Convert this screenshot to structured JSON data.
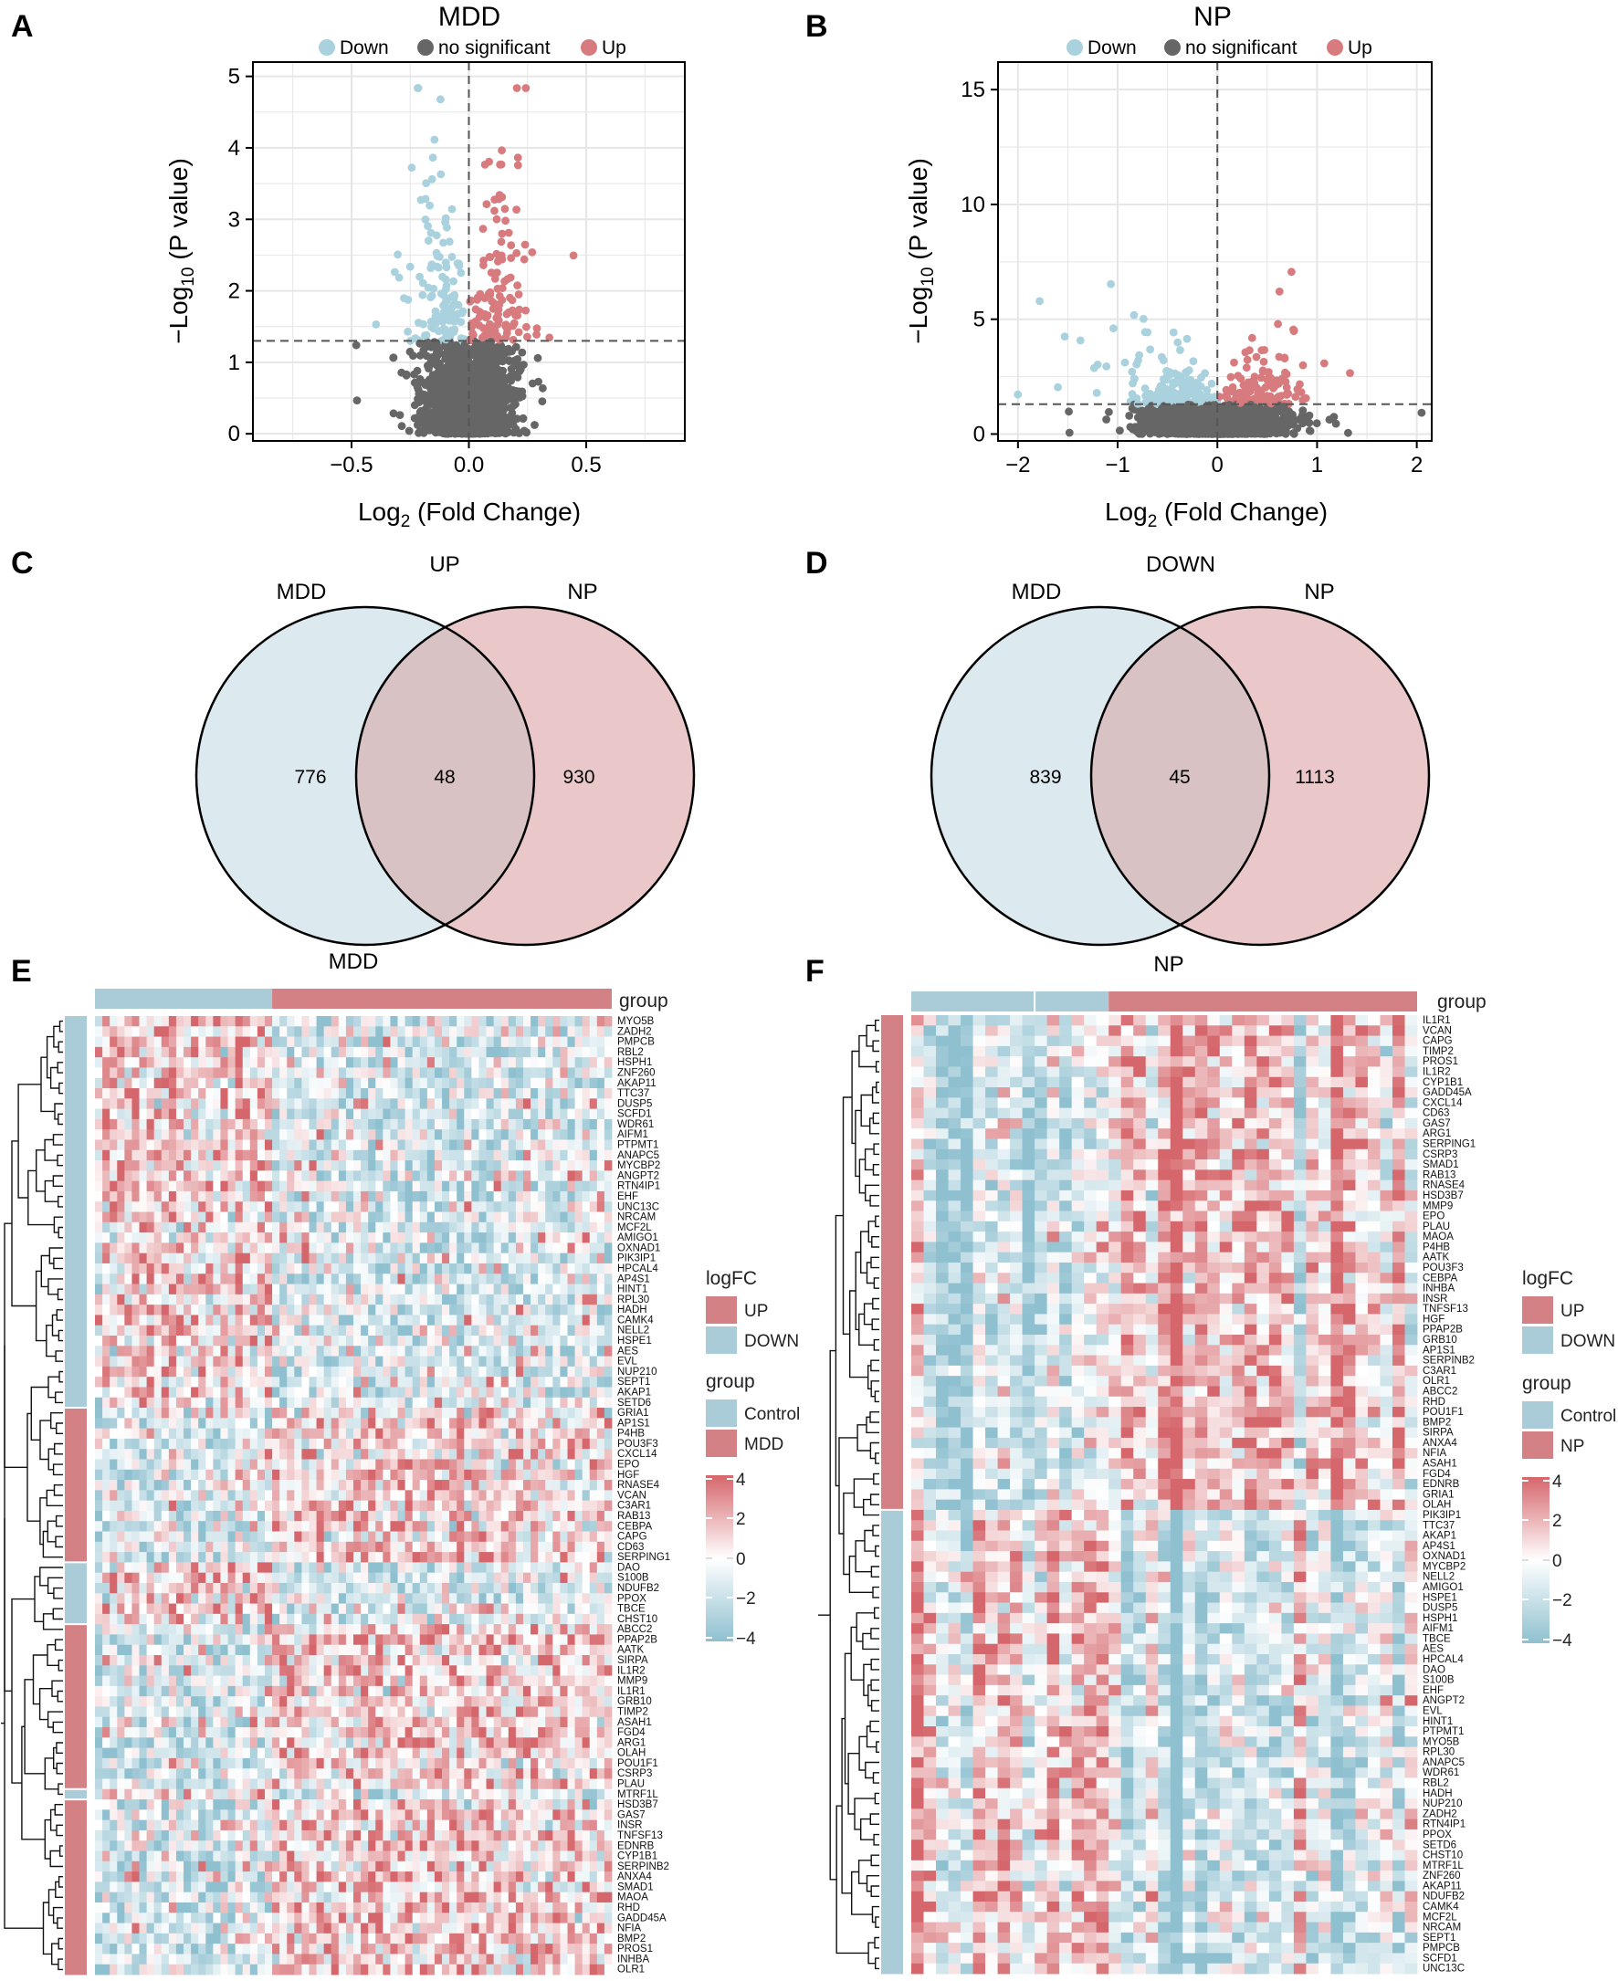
{
  "colors": {
    "up": "#D77B7E",
    "down": "#A9D1DE",
    "ns": "#666666",
    "control": "#A9CCD8",
    "case": "#D48185",
    "venn_left": "#DCEAF0",
    "venn_right": "#EAC8CA",
    "venn_mid": "#D8C2C4"
  },
  "panels": {
    "A": "A",
    "B": "B",
    "C": "C",
    "D": "D",
    "E": "E",
    "F": "F"
  },
  "volcano_legend": {
    "down": "Down",
    "ns": "no significant",
    "up": "Up"
  },
  "chart_data": [
    {
      "id": "A",
      "type": "scatter",
      "title": "MDD",
      "xlabel": "Log2 (Fold Change)",
      "ylabel": "-Log10 (P value)",
      "xlim": [
        -0.92,
        0.92
      ],
      "ylim": [
        -0.1,
        5.2
      ],
      "xticks": [
        -0.5,
        0.0,
        0.5
      ],
      "xticklabels": [
        "−0.5",
        "0.0",
        "0.5"
      ],
      "yticks": [
        0,
        1,
        2,
        3,
        4,
        5
      ],
      "p_threshold_line": 1.3,
      "fc_threshold_line": 0,
      "series": [
        "Down",
        "no significant",
        "Up"
      ]
    },
    {
      "id": "B",
      "type": "scatter",
      "title": "NP",
      "xlabel": "Log2 (Fold Change)",
      "ylabel": "-Log10 (P value)",
      "xlim": [
        -2.2,
        2.15
      ],
      "ylim": [
        -0.3,
        16.2
      ],
      "xticks": [
        -2,
        -1,
        0,
        1,
        2
      ],
      "xticklabels": [
        "−2",
        "−1",
        "0",
        "1",
        "2"
      ],
      "yticks": [
        0,
        5,
        10,
        15
      ],
      "p_threshold_line": 1.3,
      "fc_threshold_line": 0,
      "series": [
        "Down",
        "no significant",
        "Up"
      ]
    },
    {
      "id": "C",
      "type": "venn",
      "title": "UP",
      "sets": [
        "MDD",
        "NP"
      ],
      "bottom_label": "MDD",
      "left_only": "776",
      "intersection": "48",
      "right_only": "930"
    },
    {
      "id": "D",
      "type": "venn",
      "title": "DOWN",
      "sets": [
        "MDD",
        "NP"
      ],
      "bottom_label": "NP",
      "left_only": "839",
      "intersection": "45",
      "right_only": "1113"
    },
    {
      "id": "E",
      "type": "heatmap",
      "group_label": "group",
      "n_control_cols": 24,
      "n_case_cols": 46,
      "genes": [
        "MYO5B",
        "ZADH2",
        "PMPCB",
        "RBL2",
        "HSPH1",
        "ZNF260",
        "AKAP11",
        "TTC37",
        "DUSP5",
        "SCFD1",
        "WDR61",
        "AIFM1",
        "PTPMT1",
        "ANAPC5",
        "MYCBP2",
        "ANGPT2",
        "RTN4IP1",
        "EHF",
        "UNC13C",
        "NRCAM",
        "MCF2L",
        "AMIGO1",
        "OXNAD1",
        "PIK3IP1",
        "HPCAL4",
        "AP4S1",
        "HINT1",
        "RPL30",
        "HADH",
        "CAMK4",
        "NELL2",
        "HSPE1",
        "AES",
        "EVL",
        "NUP210",
        "SEPT1",
        "AKAP1",
        "SETD6",
        "GRIA1",
        "AP1S1",
        "P4HB",
        "POU3F3",
        "CXCL14",
        "EPO",
        "HGF",
        "RNASE4",
        "VCAN",
        "C3AR1",
        "RAB13",
        "CEBPA",
        "CAPG",
        "CD63",
        "SERPING1",
        "DAO",
        "S100B",
        "NDUFB2",
        "PPOX",
        "TBCE",
        "CHST10",
        "ABCC2",
        "PPAP2B",
        "AATK",
        "SIRPA",
        "IL1R2",
        "MMP9",
        "IL1R1",
        "GRB10",
        "TIMP2",
        "ASAH1",
        "FGD4",
        "ARG1",
        "OLAH",
        "POU1F1",
        "CSRP3",
        "PLAU",
        "MTRF1L",
        "HSD3B7",
        "GAS7",
        "INSR",
        "TNFSF13",
        "EDNRB",
        "CYP1B1",
        "SERPINB2",
        "ANXA4",
        "SMAD1",
        "MAOA",
        "RHD",
        "GADD45A",
        "NFIA",
        "BMP2",
        "PROS1",
        "INHBA",
        "OLR1"
      ],
      "row_logfc": [
        "DOWN",
        "DOWN",
        "DOWN",
        "DOWN",
        "DOWN",
        "DOWN",
        "DOWN",
        "DOWN",
        "DOWN",
        "DOWN",
        "DOWN",
        "DOWN",
        "DOWN",
        "DOWN",
        "DOWN",
        "DOWN",
        "DOWN",
        "DOWN",
        "DOWN",
        "DOWN",
        "DOWN",
        "DOWN",
        "DOWN",
        "DOWN",
        "DOWN",
        "DOWN",
        "DOWN",
        "DOWN",
        "DOWN",
        "DOWN",
        "DOWN",
        "DOWN",
        "DOWN",
        "DOWN",
        "DOWN",
        "DOWN",
        "DOWN",
        "DOWN",
        "UP",
        "UP",
        "UP",
        "UP",
        "UP",
        "UP",
        "UP",
        "UP",
        "UP",
        "UP",
        "UP",
        "UP",
        "UP",
        "UP",
        "UP",
        "DOWN",
        "DOWN",
        "DOWN",
        "DOWN",
        "DOWN",
        "DOWN",
        "UP",
        "UP",
        "UP",
        "UP",
        "UP",
        "UP",
        "UP",
        "UP",
        "UP",
        "UP",
        "UP",
        "UP",
        "UP",
        "UP",
        "UP",
        "UP",
        "DOWN",
        "UP",
        "UP",
        "UP",
        "UP",
        "UP",
        "UP",
        "UP",
        "UP",
        "UP",
        "UP",
        "UP",
        "UP",
        "UP",
        "UP",
        "UP",
        "UP",
        "UP"
      ],
      "legend": {
        "logfc_title": "logFC",
        "logfc_up": "UP",
        "logfc_down": "DOWN",
        "group_title": "group",
        "group_control": "Control",
        "group_case": "MDD",
        "scale_ticks": [
          "4",
          "2",
          "0",
          "−2",
          "−4"
        ]
      }
    },
    {
      "id": "F",
      "type": "heatmap",
      "group_label": "group",
      "n_control_cols": 16,
      "n_case_cols": 25,
      "genes": [
        "IL1R1",
        "VCAN",
        "CAPG",
        "TIMP2",
        "PROS1",
        "IL1R2",
        "CYP1B1",
        "GADD45A",
        "CXCL14",
        "CD63",
        "GAS7",
        "ARG1",
        "SERPING1",
        "CSRP3",
        "SMAD1",
        "RAB13",
        "RNASE4",
        "HSD3B7",
        "MMP9",
        "EPO",
        "PLAU",
        "MAOA",
        "P4HB",
        "AATK",
        "POU3F3",
        "CEBPA",
        "INHBA",
        "INSR",
        "TNFSF13",
        "HGF",
        "PPAP2B",
        "GRB10",
        "AP1S1",
        "SERPINB2",
        "C3AR1",
        "OLR1",
        "ABCC2",
        "RHD",
        "POU1F1",
        "BMP2",
        "SIRPA",
        "ANXA4",
        "NFIA",
        "ASAH1",
        "FGD4",
        "EDNRB",
        "GRIA1",
        "OLAH",
        "PIK3IP1",
        "TTC37",
        "AKAP1",
        "AP4S1",
        "OXNAD1",
        "MYCBP2",
        "NELL2",
        "AMIGO1",
        "HSPE1",
        "DUSP5",
        "HSPH1",
        "AIFM1",
        "TBCE",
        "AES",
        "HPCAL4",
        "DAO",
        "S100B",
        "EHF",
        "ANGPT2",
        "EVL",
        "HINT1",
        "PTPMT1",
        "MYO5B",
        "RPL30",
        "ANAPC5",
        "WDR61",
        "RBL2",
        "HADH",
        "NUP210",
        "ZADH2",
        "RTN4IP1",
        "PPOX",
        "SETD6",
        "CHST10",
        "MTRF1L",
        "ZNF260",
        "AKAP11",
        "NDUFB2",
        "CAMK4",
        "MCF2L",
        "NRCAM",
        "SEPT1",
        "PMPCB",
        "SCFD1",
        "UNC13C"
      ],
      "n_up_rows": 48,
      "legend": {
        "logfc_title": "logFC",
        "logfc_up": "UP",
        "logfc_down": "DOWN",
        "group_title": "group",
        "group_control": "Control",
        "group_case": "NP",
        "scale_ticks": [
          "4",
          "2",
          "0",
          "−2",
          "−4"
        ]
      }
    }
  ]
}
